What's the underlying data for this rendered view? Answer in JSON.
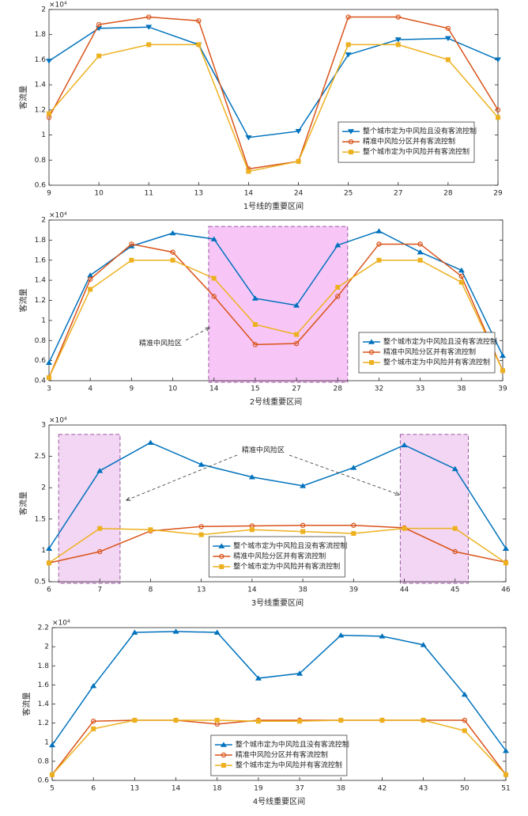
{
  "chart_data": [
    {
      "type": "line",
      "y_multiplier": "×10⁴",
      "ylabel": "客流量",
      "xlabel": "1号线的重要区间",
      "categories": [
        "9",
        "10",
        "11",
        "13",
        "14",
        "24",
        "25",
        "27",
        "28",
        "29"
      ],
      "ylim": [
        0.6,
        2
      ],
      "yticks": [
        0.6,
        0.8,
        1,
        1.2,
        1.4,
        1.6,
        1.8,
        2
      ],
      "legend": "center right",
      "series": [
        {
          "name": "整个城市定为中风险且没有客流控制",
          "color": "#0072BD",
          "marker": "triangle-down",
          "values": [
            1.59,
            1.85,
            1.86,
            1.72,
            0.98,
            1.03,
            1.64,
            1.76,
            1.77,
            1.6
          ]
        },
        {
          "name": "精准中风险分区并有客流控制",
          "color": "#D95319",
          "marker": "circle",
          "values": [
            1.14,
            1.88,
            1.94,
            1.91,
            0.73,
            0.79,
            1.94,
            1.94,
            1.85,
            1.2
          ]
        },
        {
          "name": "整个城市定为中风险并有客流控制",
          "color": "#EDB120",
          "marker": "square",
          "values": [
            1.17,
            1.63,
            1.72,
            1.72,
            0.71,
            0.79,
            1.72,
            1.72,
            1.6,
            1.14
          ]
        }
      ]
    },
    {
      "type": "line",
      "y_multiplier": "×10⁴",
      "ylabel": "客流量",
      "xlabel": "2号线重要区间",
      "annotation": "精准中风险区",
      "categories": [
        "3",
        "4",
        "9",
        "10",
        "14",
        "15",
        "27",
        "28",
        "32",
        "33",
        "38",
        "39"
      ],
      "ylim": [
        0.4,
        2
      ],
      "yticks": [
        0.4,
        0.6,
        0.8,
        1,
        1.2,
        1.4,
        1.6,
        1.8,
        2
      ],
      "legend": "lower right",
      "series": [
        {
          "name": "整个城市定为中风险且没有客流控制",
          "color": "#0072BD",
          "marker": "triangle-up",
          "values": [
            0.58,
            1.45,
            1.74,
            1.87,
            1.81,
            1.22,
            1.15,
            1.75,
            1.89,
            1.68,
            1.5,
            0.65
          ]
        },
        {
          "name": "精准中风险分区并有客流控制",
          "color": "#D95319",
          "marker": "circle",
          "values": [
            0.43,
            1.41,
            1.76,
            1.68,
            1.24,
            0.76,
            0.77,
            1.24,
            1.76,
            1.76,
            1.44,
            0.5
          ]
        },
        {
          "name": "整个城市定为中风险并有客流控制",
          "color": "#EDB120",
          "marker": "square",
          "values": [
            0.43,
            1.31,
            1.6,
            1.6,
            1.42,
            0.96,
            0.86,
            1.33,
            1.6,
            1.6,
            1.38,
            0.5
          ]
        }
      ]
    },
    {
      "type": "line",
      "y_multiplier": "×10⁴",
      "ylabel": "客流量",
      "xlabel": "3号线重要区间",
      "annotation": "精准中风险区",
      "categories": [
        "6",
        "7",
        "8",
        "13",
        "14",
        "38",
        "39",
        "44",
        "45",
        "46"
      ],
      "ylim": [
        0.5,
        3
      ],
      "yticks": [
        0.5,
        1,
        1.5,
        2,
        2.5,
        3
      ],
      "legend": "lower center",
      "series": [
        {
          "name": "整个城市定为中风险且没有客流控制",
          "color": "#0072BD",
          "marker": "triangle-up",
          "values": [
            1.03,
            2.27,
            2.72,
            2.37,
            2.17,
            2.03,
            2.32,
            2.68,
            2.3,
            1.03
          ]
        },
        {
          "name": "精准中风险分区并有客流控制",
          "color": "#D95319",
          "marker": "circle",
          "values": [
            0.8,
            0.98,
            1.31,
            1.38,
            1.39,
            1.4,
            1.4,
            1.36,
            0.98,
            0.81
          ]
        },
        {
          "name": "整个城市定为中风险并有客流控制",
          "color": "#EDB120",
          "marker": "square",
          "values": [
            0.8,
            1.35,
            1.33,
            1.25,
            1.33,
            1.3,
            1.27,
            1.35,
            1.35,
            0.8
          ]
        }
      ]
    },
    {
      "type": "line",
      "y_multiplier": "×10⁴",
      "ylabel": "客流量",
      "xlabel": "4号线重要区间",
      "categories": [
        "5",
        "6",
        "13",
        "14",
        "18",
        "19",
        "37",
        "38",
        "42",
        "43",
        "50",
        "51"
      ],
      "ylim": [
        0.6,
        2.2
      ],
      "yticks": [
        0.6,
        0.8,
        1,
        1.2,
        1.4,
        1.6,
        1.8,
        2,
        2.2
      ],
      "legend": "lower center",
      "series": [
        {
          "name": "整个城市定为中风险且没有客流控制",
          "color": "#0072BD",
          "marker": "triangle-up",
          "values": [
            0.97,
            1.59,
            2.15,
            2.16,
            2.15,
            1.67,
            1.72,
            2.12,
            2.11,
            2.02,
            1.5,
            0.91
          ]
        },
        {
          "name": "精准中风险分区并有客流控制",
          "color": "#D95319",
          "marker": "circle",
          "values": [
            0.66,
            1.22,
            1.23,
            1.23,
            1.19,
            1.23,
            1.23,
            1.23,
            1.23,
            1.23,
            1.23,
            0.66
          ]
        },
        {
          "name": "整个城市定为中风险并有客流控制",
          "color": "#EDB120",
          "marker": "square",
          "values": [
            0.66,
            1.14,
            1.23,
            1.23,
            1.23,
            1.22,
            1.22,
            1.23,
            1.23,
            1.23,
            1.12,
            0.66
          ]
        }
      ]
    }
  ]
}
